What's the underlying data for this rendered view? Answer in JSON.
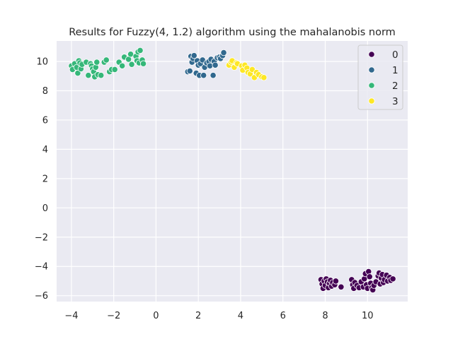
{
  "chart_data": {
    "type": "scatter",
    "title": "Results for Fuzzy(4, 1.2) algorithm using the mahalanobis norm",
    "xlabel": "",
    "ylabel": "",
    "xlim": [
      -4.7,
      11.9
    ],
    "ylim": [
      -6.4,
      11.4
    ],
    "xticks": [
      -4,
      -2,
      0,
      2,
      4,
      6,
      8,
      10
    ],
    "yticks": [
      -6,
      -4,
      -2,
      0,
      2,
      4,
      6,
      8,
      10
    ],
    "grid": true,
    "background": "#eaeaf2",
    "legend": {
      "position": "top-right",
      "entries": [
        {
          "label": "0",
          "color": "#440154"
        },
        {
          "label": "1",
          "color": "#31688e"
        },
        {
          "label": "2",
          "color": "#35b779"
        },
        {
          "label": "3",
          "color": "#fde725"
        }
      ]
    },
    "series": [
      {
        "name": "0",
        "color": "#440154",
        "points": [
          [
            7.8,
            -4.9
          ],
          [
            7.85,
            -5.2
          ],
          [
            7.9,
            -5.5
          ],
          [
            7.95,
            -5.0
          ],
          [
            8.0,
            -5.3
          ],
          [
            8.05,
            -4.85
          ],
          [
            8.1,
            -5.05
          ],
          [
            8.15,
            -5.45
          ],
          [
            8.2,
            -5.15
          ],
          [
            8.25,
            -4.95
          ],
          [
            8.3,
            -5.35
          ],
          [
            8.35,
            -5.1
          ],
          [
            8.45,
            -5.25
          ],
          [
            8.5,
            -5.0
          ],
          [
            8.75,
            -5.4
          ],
          [
            9.25,
            -4.9
          ],
          [
            9.3,
            -5.25
          ],
          [
            9.35,
            -5.5
          ],
          [
            9.4,
            -5.1
          ],
          [
            9.5,
            -5.3
          ],
          [
            9.6,
            -5.45
          ],
          [
            9.7,
            -5.05
          ],
          [
            9.8,
            -5.4
          ],
          [
            9.85,
            -4.85
          ],
          [
            9.9,
            -4.5
          ],
          [
            9.95,
            -5.25
          ],
          [
            10.0,
            -5.5
          ],
          [
            10.05,
            -4.35
          ],
          [
            10.1,
            -4.7
          ],
          [
            10.15,
            -5.15
          ],
          [
            10.2,
            -5.45
          ],
          [
            10.25,
            -5.6
          ],
          [
            10.3,
            -5.3
          ],
          [
            10.4,
            -5.05
          ],
          [
            10.5,
            -4.65
          ],
          [
            10.55,
            -4.45
          ],
          [
            10.6,
            -5.2
          ],
          [
            10.65,
            -4.8
          ],
          [
            10.7,
            -4.55
          ],
          [
            10.75,
            -5.1
          ],
          [
            10.8,
            -4.9
          ],
          [
            10.9,
            -4.6
          ],
          [
            10.95,
            -5.0
          ],
          [
            11.05,
            -4.75
          ],
          [
            11.1,
            -4.95
          ],
          [
            11.2,
            -4.85
          ]
        ]
      },
      {
        "name": "1",
        "color": "#31688e",
        "points": [
          [
            1.5,
            9.3
          ],
          [
            1.6,
            9.35
          ],
          [
            1.65,
            10.35
          ],
          [
            1.7,
            9.95
          ],
          [
            1.75,
            10.2
          ],
          [
            1.8,
            10.4
          ],
          [
            1.9,
            9.2
          ],
          [
            1.95,
            10.05
          ],
          [
            2.0,
            9.75
          ],
          [
            2.05,
            9.05
          ],
          [
            2.1,
            9.85
          ],
          [
            2.2,
            10.1
          ],
          [
            2.25,
            9.05
          ],
          [
            2.3,
            9.6
          ],
          [
            2.4,
            9.9
          ],
          [
            2.5,
            10.0
          ],
          [
            2.55,
            9.7
          ],
          [
            2.6,
            10.15
          ],
          [
            2.7,
            9.05
          ],
          [
            2.75,
            10.0
          ],
          [
            2.8,
            9.75
          ],
          [
            2.9,
            10.25
          ],
          [
            3.0,
            10.3
          ],
          [
            3.05,
            10.2
          ],
          [
            3.15,
            10.4
          ],
          [
            3.2,
            10.6
          ]
        ]
      },
      {
        "name": "2",
        "color": "#35b779",
        "points": [
          [
            -4.0,
            9.7
          ],
          [
            -3.95,
            9.45
          ],
          [
            -3.85,
            9.85
          ],
          [
            -3.75,
            9.6
          ],
          [
            -3.7,
            9.2
          ],
          [
            -3.65,
            10.05
          ],
          [
            -3.6,
            9.9
          ],
          [
            -3.55,
            9.5
          ],
          [
            -3.5,
            9.8
          ],
          [
            -3.3,
            9.95
          ],
          [
            -3.2,
            9.05
          ],
          [
            -3.1,
            9.85
          ],
          [
            -3.05,
            9.7
          ],
          [
            -3.0,
            9.5
          ],
          [
            -2.95,
            9.3
          ],
          [
            -2.9,
            8.95
          ],
          [
            -2.85,
            9.6
          ],
          [
            -2.8,
            9.95
          ],
          [
            -2.75,
            9.1
          ],
          [
            -2.6,
            9.05
          ],
          [
            -2.45,
            9.95
          ],
          [
            -2.35,
            10.1
          ],
          [
            -2.2,
            9.3
          ],
          [
            -2.1,
            9.45
          ],
          [
            -1.95,
            9.45
          ],
          [
            -1.75,
            9.95
          ],
          [
            -1.6,
            9.7
          ],
          [
            -1.5,
            10.3
          ],
          [
            -1.3,
            10.15
          ],
          [
            -1.2,
            10.5
          ],
          [
            -1.15,
            9.8
          ],
          [
            -0.95,
            10.35
          ],
          [
            -0.9,
            10.05
          ],
          [
            -0.85,
            10.65
          ],
          [
            -0.8,
            9.9
          ],
          [
            -0.75,
            10.75
          ],
          [
            -0.65,
            10.1
          ],
          [
            -0.6,
            9.85
          ]
        ]
      },
      {
        "name": "3",
        "color": "#fde725",
        "points": [
          [
            3.45,
            9.75
          ],
          [
            3.55,
            9.95
          ],
          [
            3.6,
            10.05
          ],
          [
            3.7,
            9.6
          ],
          [
            3.8,
            9.9
          ],
          [
            3.85,
            9.85
          ],
          [
            4.05,
            9.7
          ],
          [
            4.1,
            9.4
          ],
          [
            4.2,
            9.75
          ],
          [
            4.3,
            9.55
          ],
          [
            4.35,
            9.25
          ],
          [
            4.45,
            9.15
          ],
          [
            4.55,
            9.45
          ],
          [
            4.65,
            8.9
          ],
          [
            4.75,
            9.25
          ],
          [
            4.85,
            9.1
          ],
          [
            5.0,
            8.95
          ],
          [
            5.1,
            8.9
          ]
        ]
      }
    ]
  }
}
